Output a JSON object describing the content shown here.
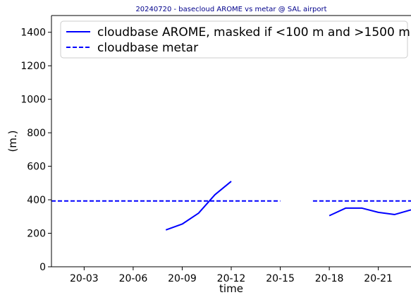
{
  "chart_data": {
    "type": "line",
    "title": "20240720 - basecloud AROME vs metar @ SAL airport",
    "xlabel": "time",
    "ylabel": "(m.)",
    "x_unit": "hour of 2024-07-20",
    "xlim": [
      1,
      23
    ],
    "ylim": [
      0,
      1500
    ],
    "x_ticks": [
      3,
      6,
      9,
      12,
      15,
      18,
      21
    ],
    "x_tick_labels": [
      "20-03",
      "20-06",
      "20-09",
      "20-12",
      "20-15",
      "20-18",
      "20-21"
    ],
    "y_ticks": [
      0,
      200,
      400,
      600,
      800,
      1000,
      1200,
      1400
    ],
    "y_tick_labels": [
      "0",
      "200",
      "400",
      "600",
      "800",
      "1000",
      "1200",
      "1400"
    ],
    "grid": false,
    "legend_position": "top-right",
    "series": [
      {
        "name": "cloudbase AROME, masked if <100 m and >1500 m",
        "color": "#0000ff",
        "style": "solid",
        "segments": [
          [
            [
              8,
              220
            ],
            [
              9,
              255
            ],
            [
              10,
              320
            ],
            [
              11,
              430
            ],
            [
              12,
              510
            ]
          ],
          [
            [
              18,
              305
            ],
            [
              19,
              350
            ],
            [
              20,
              350
            ],
            [
              21,
              325
            ],
            [
              22,
              312
            ],
            [
              23,
              340
            ]
          ]
        ]
      },
      {
        "name": "cloudbase metar",
        "color": "#0000ff",
        "style": "dashed",
        "segments": [
          [
            [
              1,
              393
            ],
            [
              15,
              393
            ]
          ],
          [
            [
              17,
              393
            ],
            [
              23,
              393
            ]
          ]
        ]
      }
    ]
  }
}
